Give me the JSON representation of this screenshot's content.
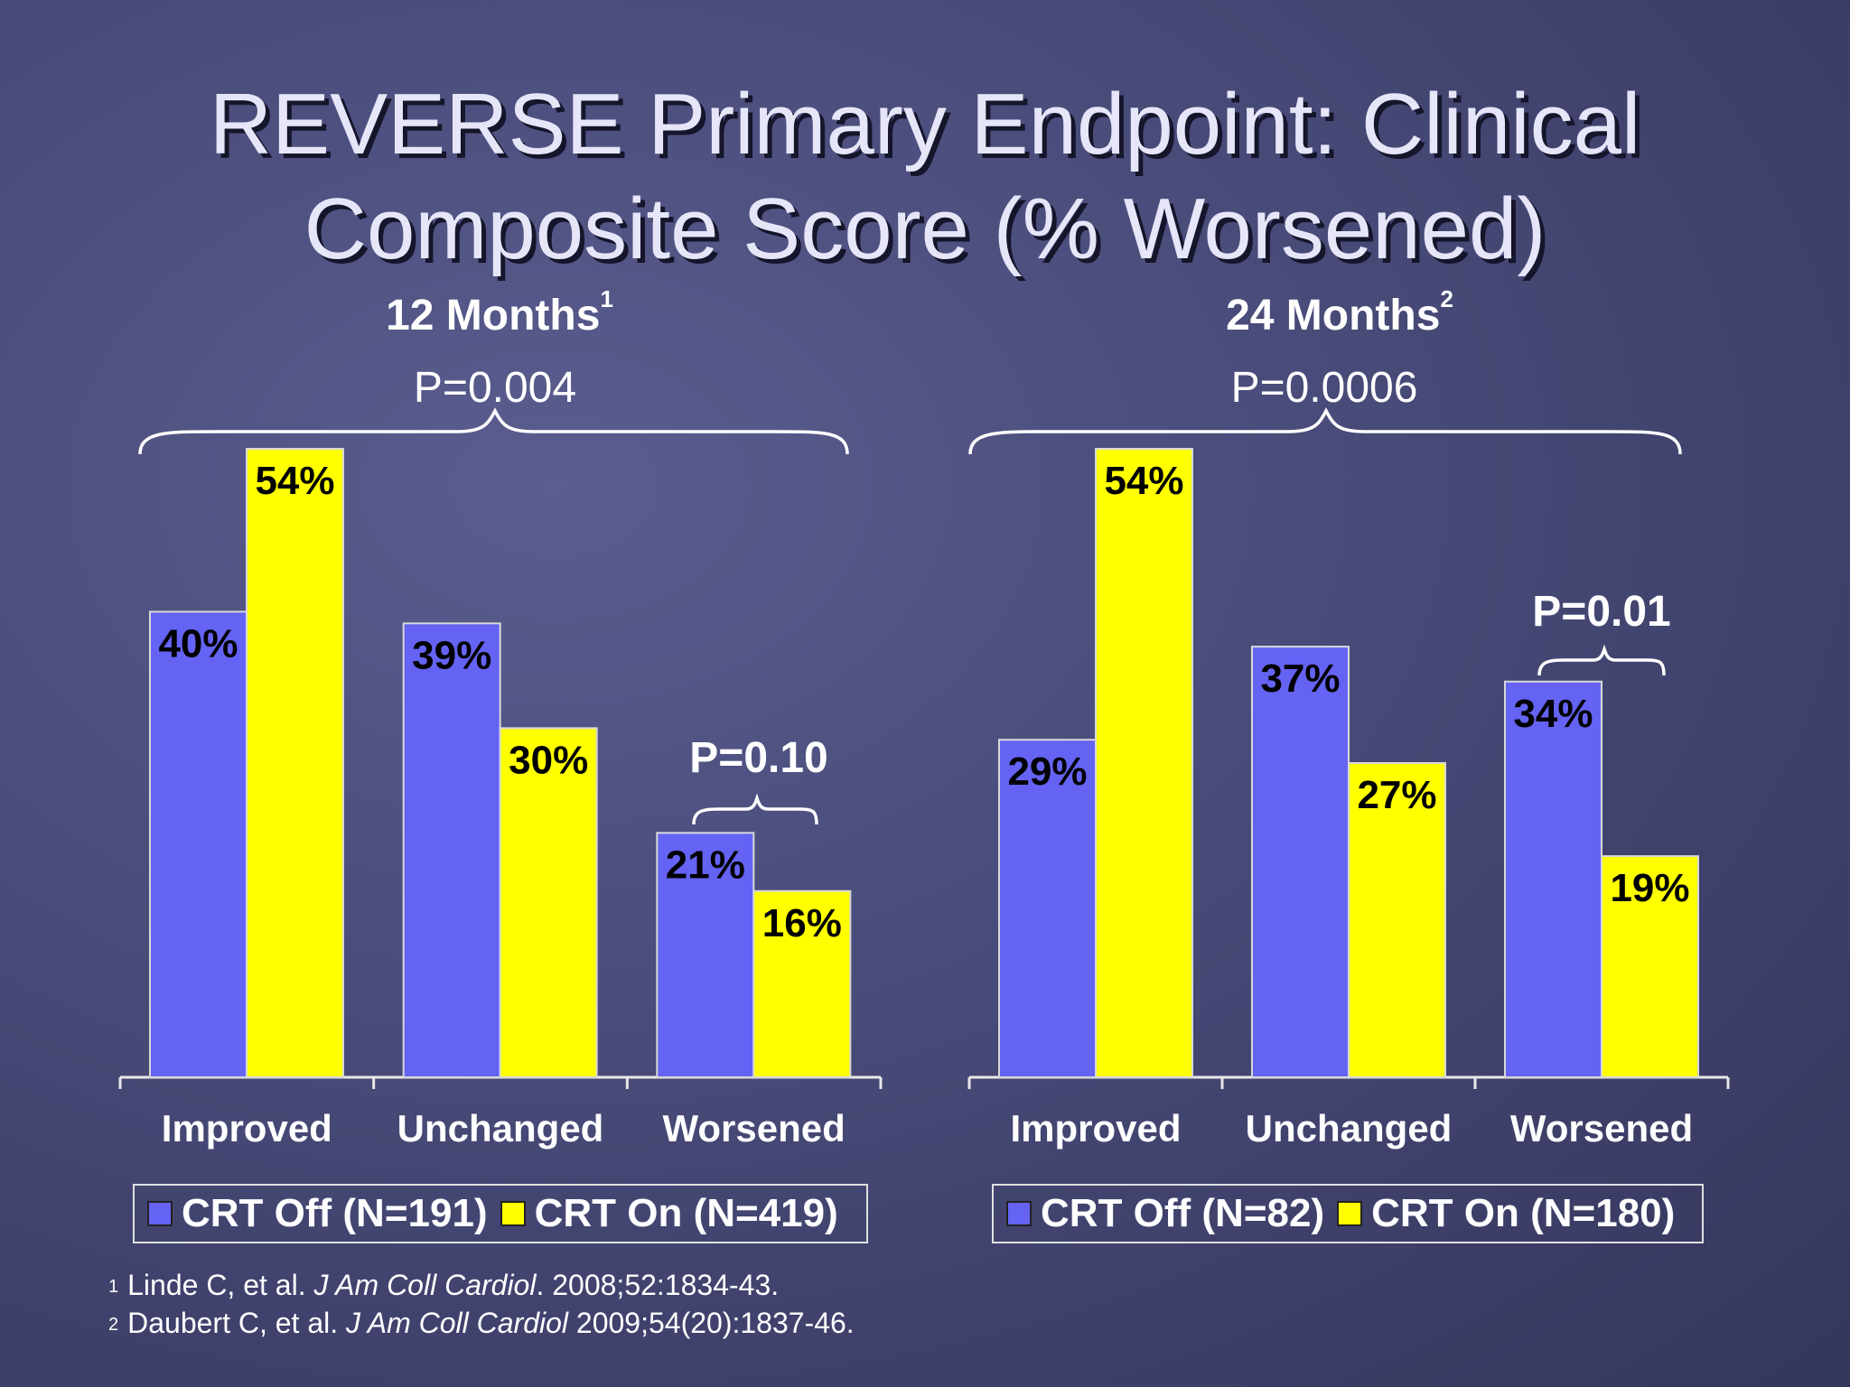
{
  "title": {
    "line1": "REVERSE Primary Endpoint: Clinical",
    "line2": "Composite Score (% Worsened)"
  },
  "colors": {
    "crt_off": "#6563f3",
    "crt_on": "#ffff00",
    "text": "#ffffff"
  },
  "chart_data": [
    {
      "type": "bar",
      "title": "12 Months",
      "title_superscript": "1",
      "overall_p": "P=0.004",
      "categories": [
        "Improved",
        "Unchanged",
        "Worsened"
      ],
      "series": [
        {
          "name": "CRT Off (N=191)",
          "values": [
            40,
            39,
            21
          ],
          "labels": [
            "40%",
            "39%",
            "21%"
          ]
        },
        {
          "name": "CRT On (N=419)",
          "values": [
            54,
            30,
            16
          ],
          "labels": [
            "54%",
            "30%",
            "16%"
          ]
        }
      ],
      "worsened_p": "P=0.10",
      "ylim": [
        0,
        54
      ]
    },
    {
      "type": "bar",
      "title": "24 Months",
      "title_superscript": "2",
      "overall_p": "P=0.0006",
      "categories": [
        "Improved",
        "Unchanged",
        "Worsened"
      ],
      "series": [
        {
          "name": "CRT Off (N=82)",
          "values": [
            29,
            37,
            34
          ],
          "labels": [
            "29%",
            "37%",
            "34%"
          ]
        },
        {
          "name": "CRT On (N=180)",
          "values": [
            54,
            27,
            19
          ],
          "labels": [
            "54%",
            "27%",
            "19%"
          ]
        }
      ],
      "worsened_p": "P=0.01",
      "ylim": [
        0,
        54
      ]
    }
  ],
  "references": [
    {
      "num": "1",
      "pre": "Linde C, et al. ",
      "journal": "J Am Coll Cardiol",
      "post": ". 2008;52:1834-43."
    },
    {
      "num": "2",
      "pre": "Daubert C, et al. ",
      "journal": "J Am Coll Cardiol",
      "post": " 2009;54(20):1837-46."
    }
  ]
}
